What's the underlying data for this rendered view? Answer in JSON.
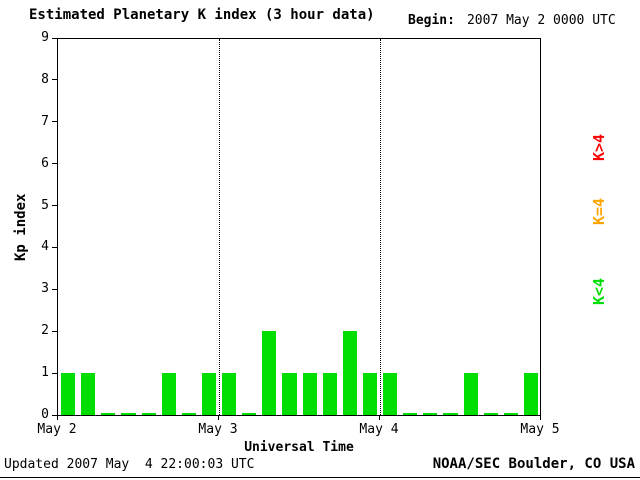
{
  "header": {
    "title": "Estimated Planetary K index (3 hour data)",
    "begin_label": "Begin:",
    "begin_value": "2007 May 2 0000 UTC"
  },
  "footer": {
    "updated": "Updated 2007 May  4 22:00:03 UTC",
    "credit": "NOAA/SEC Boulder, CO USA"
  },
  "legend": [
    {
      "label": "K>4",
      "color": "#ff0000"
    },
    {
      "label": "K=4",
      "color": "#ffa500"
    },
    {
      "label": "K<4",
      "color": "#00dd00"
    }
  ],
  "chart_data": {
    "type": "bar",
    "title": "Estimated Planetary K index (3 hour data)",
    "xlabel": "Universal Time",
    "ylabel": "Kp index",
    "ylim": [
      0,
      9
    ],
    "y_ticks": [
      0,
      1,
      2,
      3,
      4,
      5,
      6,
      7,
      8,
      9
    ],
    "x_tick_labels": [
      "May 2",
      "May 3",
      "May 4",
      "May 5"
    ],
    "interval_hours": 3,
    "bars_per_day": 8,
    "grid": "dotted vertical lines at day boundaries",
    "legend_position": "right, rotated",
    "bar_color": "#00dd00",
    "series": [
      {
        "day": "May 2",
        "values": [
          1,
          1,
          0,
          0,
          0,
          1,
          0,
          1
        ]
      },
      {
        "day": "May 3",
        "values": [
          1,
          0,
          2,
          1,
          1,
          1,
          2,
          1
        ]
      },
      {
        "day": "May 4",
        "values": [
          1,
          0,
          0,
          0,
          1,
          0,
          0,
          1
        ]
      }
    ]
  }
}
